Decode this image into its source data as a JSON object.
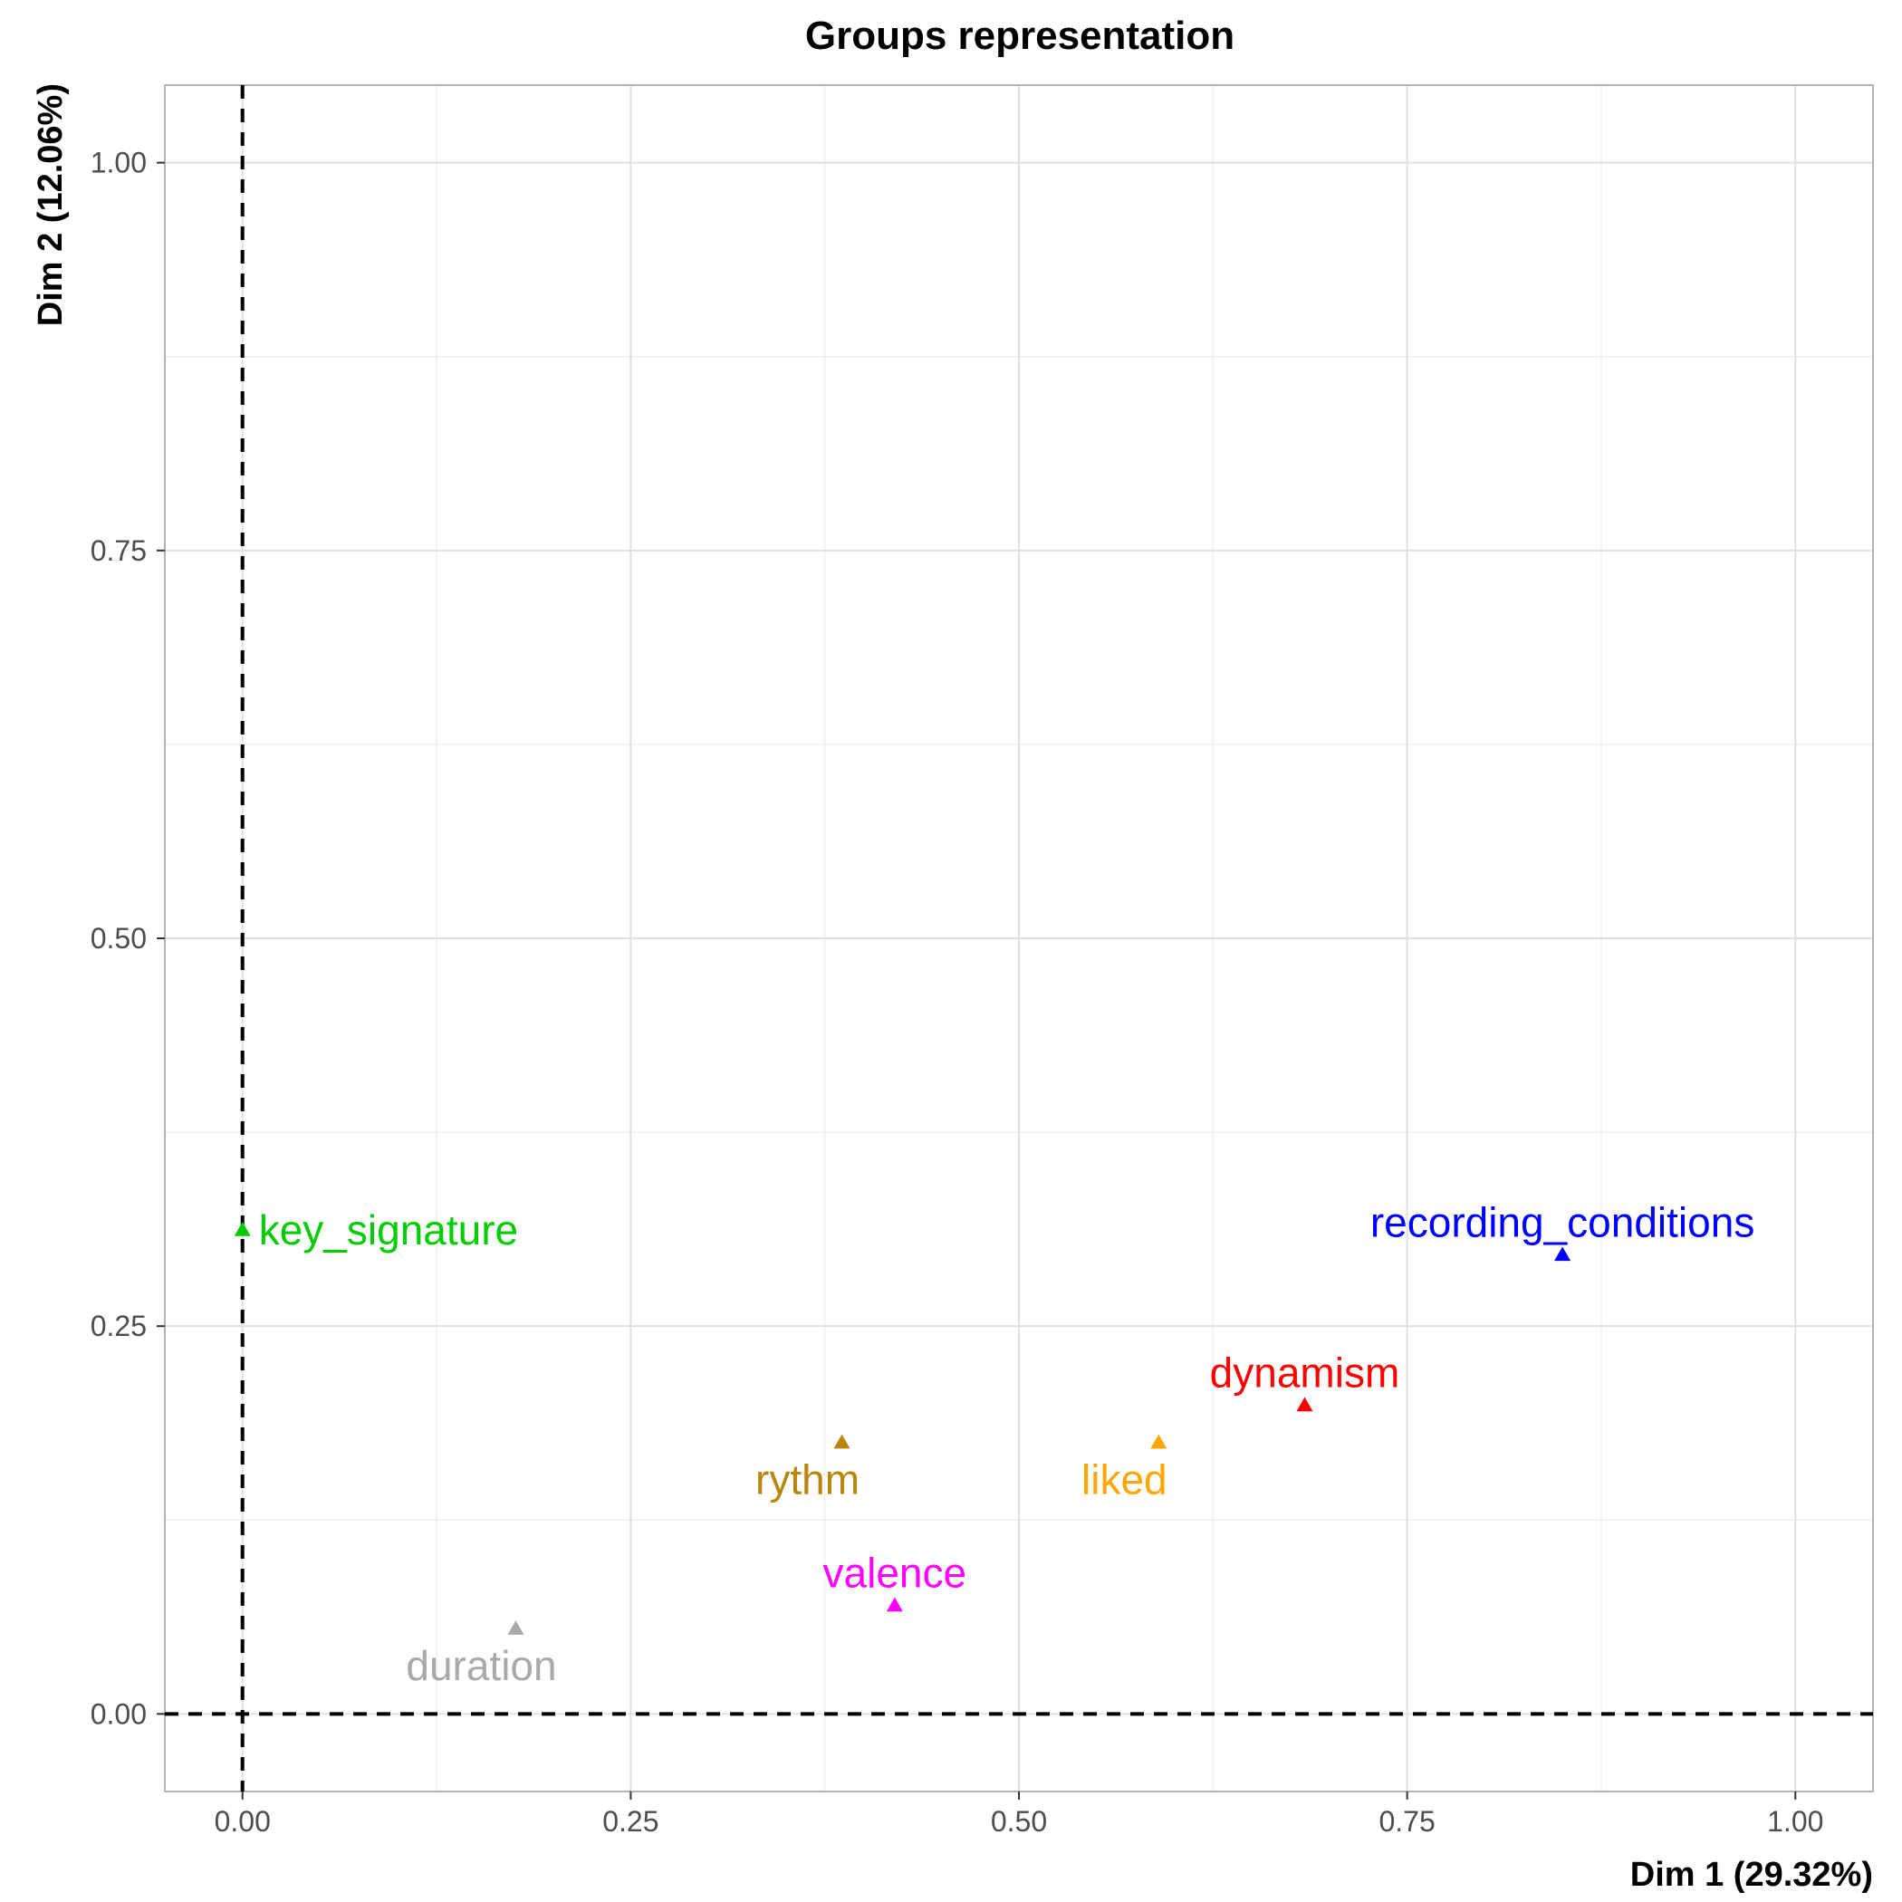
{
  "chart_data": {
    "type": "scatter",
    "title": "Groups representation",
    "xlabel": "Dim 1 (29.32%)",
    "ylabel": "Dim 2 (12.06%)",
    "xlim": [
      -0.05,
      1.05
    ],
    "ylim": [
      -0.05,
      1.05
    ],
    "x_ticks": [
      "0.00",
      "0.25",
      "0.50",
      "0.75",
      "1.00"
    ],
    "x_tick_values": [
      0,
      0.25,
      0.5,
      0.75,
      1.0
    ],
    "y_ticks": [
      "0.00",
      "0.25",
      "0.50",
      "0.75",
      "1.00"
    ],
    "y_tick_values": [
      0,
      0.25,
      0.5,
      0.75,
      1.0
    ],
    "grid": true,
    "reference_lines": {
      "x": 0,
      "y": 0,
      "style": "dashed"
    },
    "marker": "triangle",
    "points": [
      {
        "label": "key_signature",
        "x": 0.0,
        "y": 0.312,
        "color": "#00cd00",
        "label_pos": "right"
      },
      {
        "label": "recording_conditions",
        "x": 0.85,
        "y": 0.296,
        "color": "#0000ff",
        "label_pos": "top"
      },
      {
        "label": "dynamism",
        "x": 0.684,
        "y": 0.199,
        "color": "#ff0000",
        "label_pos": "top"
      },
      {
        "label": "rythm",
        "x": 0.386,
        "y": 0.175,
        "color": "#b8860b",
        "label_pos": "bottom"
      },
      {
        "label": "liked",
        "x": 0.59,
        "y": 0.175,
        "color": "#ffa500",
        "label_pos": "bottom"
      },
      {
        "label": "valence",
        "x": 0.42,
        "y": 0.07,
        "color": "#ff00ff",
        "label_pos": "top"
      },
      {
        "label": "duration",
        "x": 0.176,
        "y": 0.055,
        "color": "#a9a9a9",
        "label_pos": "bottom"
      }
    ]
  }
}
